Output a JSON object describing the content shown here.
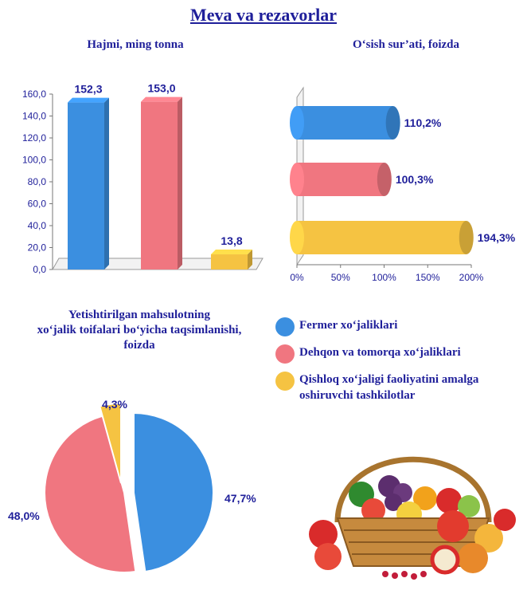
{
  "page": {
    "title": "Meva va rezavorlar"
  },
  "chart_data": [
    {
      "type": "bar",
      "title": "Hajmi, ming tonna",
      "categories": [
        "Fermer xo‘jaliklari",
        "Dehqon va tomorqa xo‘jaliklari",
        "Qishloq xo‘jaligi faoliyatini amalga oshiruvchi tashkilotlar"
      ],
      "values": [
        152.3,
        153.0,
        13.8
      ],
      "value_labels": [
        "152,3",
        "153,0",
        "13,8"
      ],
      "colors": [
        "#3b8fe0",
        "#f07680",
        "#f5c342"
      ],
      "ylim": [
        0,
        160
      ],
      "yticks": [
        "0,0",
        "20,0",
        "40,0",
        "60,0",
        "80,0",
        "100,0",
        "120,0",
        "140,0",
        "160,0"
      ],
      "grid": false
    },
    {
      "type": "bar",
      "orientation": "horizontal",
      "title": "O‘sish sur’ati, foizda",
      "categories": [
        "Fermer xo‘jaliklari",
        "Dehqon va tomorqa xo‘jaliklari",
        "Qishloq xo‘jaligi faoliyatini amalga oshiruvchi tashkilotlar"
      ],
      "values": [
        110.2,
        100.3,
        194.3
      ],
      "value_labels": [
        "110,2%",
        "100,3%",
        "194,3%"
      ],
      "colors": [
        "#3b8fe0",
        "#f07680",
        "#f5c342"
      ],
      "xlim": [
        0,
        200
      ],
      "xticks": [
        "0%",
        "50%",
        "100%",
        "150%",
        "200%"
      ],
      "grid": false
    },
    {
      "type": "pie",
      "title_lines": [
        "Yetishtirilgan mahsulotning",
        "xo‘jalik toifalari bo‘yicha taqsimlanishi,",
        "foizda"
      ],
      "categories": [
        "Fermer xo‘jaliklari",
        "Dehqon va tomorqa xo‘jaliklari",
        "Qishloq xo‘jaligi faoliyatini amalga oshiruvchi tashkilotlar"
      ],
      "values": [
        47.7,
        48.0,
        4.3
      ],
      "value_labels": [
        "47,7%",
        "48,0%",
        "4,3%"
      ],
      "colors": [
        "#3b8fe0",
        "#f07680",
        "#f5c342"
      ]
    }
  ],
  "legend": {
    "items": [
      {
        "label": "Fermer xo‘jaliklari",
        "color": "#3b8fe0"
      },
      {
        "label": "Dehqon va tomorqa xo‘jaliklari",
        "color": "#f07680"
      },
      {
        "label": "Qishloq xo‘jaligi faoliyatini amalga oshiruvchi tashkilotlar",
        "color": "#f5c342"
      }
    ]
  },
  "colors": {
    "text": "#1f1f9a",
    "axis": "#555555"
  },
  "image": {
    "icon": "fruit-basket-icon"
  }
}
